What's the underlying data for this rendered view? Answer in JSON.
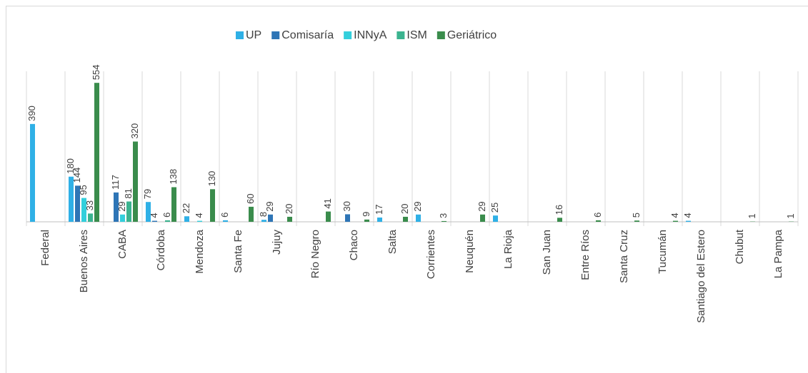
{
  "chart_data": {
    "type": "bar",
    "categories": [
      "Federal",
      "Buenos Aires",
      "CABA",
      "Córdoba",
      "Mendoza",
      "Santa Fe",
      "Jujuy",
      "Río Negro",
      "Chaco",
      "Salta",
      "Corrientes",
      "Neuquén",
      "La Rioja",
      "San Juan",
      "Entre Ríos",
      "Santa Cruz",
      "Tucumán",
      "Santiago del Estero",
      "Chubut",
      "La Pampa"
    ],
    "series": [
      {
        "name": "UP",
        "color": "#2fb0e6",
        "values": [
          390,
          180,
          null,
          79,
          22,
          6,
          8,
          null,
          null,
          17,
          29,
          null,
          25,
          null,
          null,
          null,
          null,
          4,
          null,
          null
        ]
      },
      {
        "name": "Comisaría",
        "color": "#2e75b6",
        "values": [
          null,
          144,
          117,
          4,
          null,
          null,
          29,
          null,
          30,
          null,
          null,
          null,
          null,
          null,
          null,
          null,
          null,
          null,
          null,
          null
        ]
      },
      {
        "name": "INNyA",
        "color": "#33cfdc",
        "values": [
          null,
          95,
          29,
          null,
          4,
          null,
          null,
          null,
          null,
          null,
          null,
          null,
          null,
          null,
          null,
          null,
          null,
          null,
          null,
          null
        ]
      },
      {
        "name": "ISM",
        "color": "#3bb38f",
        "values": [
          null,
          33,
          81,
          6,
          null,
          null,
          null,
          null,
          null,
          null,
          null,
          null,
          null,
          null,
          null,
          null,
          null,
          null,
          null,
          null
        ]
      },
      {
        "name": "Geriátrico",
        "color": "#3a8c4c",
        "values": [
          null,
          554,
          320,
          138,
          130,
          60,
          20,
          41,
          9,
          20,
          3,
          29,
          null,
          16,
          6,
          5,
          4,
          null,
          1,
          1
        ]
      }
    ],
    "ylim": [
      0,
      600
    ],
    "legend": "top"
  }
}
